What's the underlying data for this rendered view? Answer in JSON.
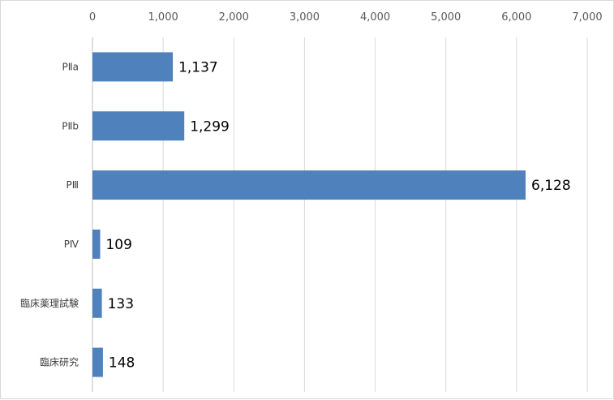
{
  "chart_data": {
    "type": "bar",
    "orientation": "horizontal",
    "categories": [
      "PⅡa",
      "PⅡb",
      "PⅢ",
      "PⅣ",
      "臨床薬理試験",
      "臨床研究"
    ],
    "values": [
      1137,
      1299,
      6128,
      109,
      133,
      148
    ],
    "data_labels": [
      "1,137",
      "1,299",
      "6,128",
      "109",
      "133",
      "148"
    ],
    "xticks": [
      "0",
      "1,000",
      "2,000",
      "3,000",
      "4,000",
      "5,000",
      "6,000",
      "7,000"
    ],
    "xlim": [
      0,
      7000
    ],
    "xaxis_position": "top",
    "grid": true,
    "legend": "none",
    "title": "",
    "xlabel": "",
    "ylabel": "",
    "colors": {
      "bar": "#4f81bd",
      "grid": "#d9d9d9",
      "axis": "#bfbfbf"
    }
  }
}
